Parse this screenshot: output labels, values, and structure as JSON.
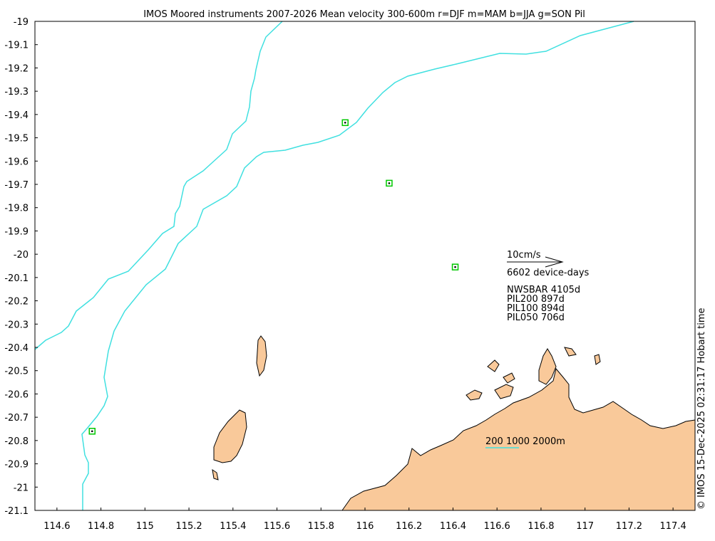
{
  "title": "IMOS Moored instruments 2007-2026 Mean velocity 300-600m r=DJF m=MAM b=JJA g=SON Pil",
  "timestamp": "© IMOS 15-Dec-2025 02:31:17 Hobart time",
  "axes": {
    "lon_min": 114.5,
    "lon_max": 117.5,
    "lat_min": -21.1,
    "lat_max": -19.0,
    "x_ticks": [
      "114.6",
      "114.8",
      "115",
      "115.2",
      "115.4",
      "115.6",
      "115.8",
      "116",
      "116.2",
      "116.4",
      "116.6",
      "116.8",
      "117",
      "117.2",
      "117.4"
    ],
    "y_ticks": [
      "-19",
      "-19.1",
      "-19.2",
      "-19.3",
      "-19.4",
      "-19.5",
      "-19.6",
      "-19.7",
      "-19.8",
      "-19.9",
      "-20",
      "-20.1",
      "-20.2",
      "-20.3",
      "-20.4",
      "-20.5",
      "-20.6",
      "-20.7",
      "-20.8",
      "-20.9",
      "-21",
      "-21.1"
    ]
  },
  "scale_arrow": {
    "label": "10cm/s"
  },
  "device_days": "6602 device-days",
  "stations": [
    {
      "label": "NWSBAR 4105d",
      "lon": 116.41,
      "lat": -20.055
    },
    {
      "label": "PIL200 897d",
      "lon": 115.91,
      "lat": -19.435
    },
    {
      "label": "PIL100 894d",
      "lon": 116.11,
      "lat": -19.695
    },
    {
      "label": "PIL050 706d",
      "lon": 114.76,
      "lat": -20.76
    }
  ],
  "contour_legend": {
    "label": "200 1000 2000m"
  },
  "colors": {
    "land": "#f9c99a",
    "contour": "#40e0e0",
    "marker": "#00c800",
    "frame": "#000000"
  }
}
